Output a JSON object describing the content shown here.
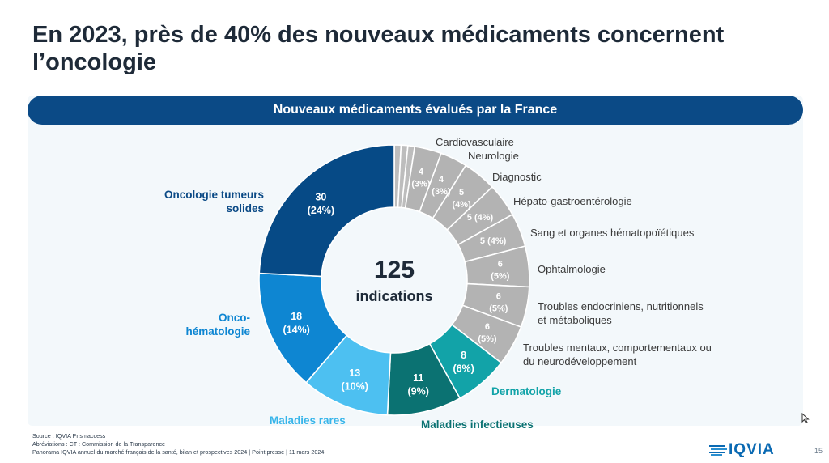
{
  "title": "En 2023, près de 40% des nouveaux médicaments concernent l’oncologie",
  "banner": "Nouveaux médicaments évalués par la France",
  "center": {
    "total": "125",
    "label": "indications"
  },
  "chart_data": {
    "type": "pie",
    "total": 125,
    "segments": [
      {
        "label": "",
        "value": 1,
        "color": "#bdbdbd"
      },
      {
        "label": "",
        "value": 1,
        "color": "#bdbdbd"
      },
      {
        "label": "",
        "value": 1,
        "color": "#bdbdbd"
      },
      {
        "label": "Cardiovasculaire",
        "value": 4,
        "percent": "3%",
        "color": "#b3b3b3"
      },
      {
        "label": "Neurologie",
        "value": 4,
        "percent": "3%",
        "color": "#b3b3b3"
      },
      {
        "label": "Diagnostic",
        "value": 5,
        "percent": "4%",
        "color": "#b3b3b3"
      },
      {
        "label": "Hépato-gastroentérologie",
        "value": 5,
        "percent": "4%",
        "color": "#b3b3b3"
      },
      {
        "label": "Sang et organes hématopoïétiques",
        "value": 5,
        "percent": "4%",
        "color": "#b3b3b3"
      },
      {
        "label": "Ophtalmologie",
        "value": 6,
        "percent": "5%",
        "color": "#b3b3b3"
      },
      {
        "label": "Troubles endocriniens, nutritionnels et métaboliques",
        "value": 6,
        "percent": "5%",
        "color": "#b3b3b3"
      },
      {
        "label": "Troubles mentaux, comportementaux ou du neurodéveloppement",
        "value": 6,
        "percent": "5%",
        "color": "#b3b3b3"
      },
      {
        "label": "Dermatologie",
        "value": 8,
        "percent": "6%",
        "color": "#12a3a8"
      },
      {
        "label": "Maladies infectieuses",
        "value": 11,
        "percent": "9%",
        "color": "#0b7272"
      },
      {
        "label": "Maladies rares",
        "value": 13,
        "percent": "10%",
        "color": "#4dc0f1"
      },
      {
        "label": "Onco-hématologie",
        "value": 18,
        "percent": "14%",
        "color": "#0e86d2"
      },
      {
        "label": "Oncologie tumeurs solides",
        "value": 30,
        "percent": "24%",
        "color": "#064a86"
      }
    ]
  },
  "footer": {
    "source": "Source : IQVIA Prismaccess",
    "abbrev": "Abréviations : CT : Commission de la Transparence",
    "ref": "Panorama IQVIA annuel du marché français de la santé, bilan et prospectives 2024 | Point presse | 11 mars 2024"
  },
  "logo": "IQVIA",
  "page_number": "15"
}
